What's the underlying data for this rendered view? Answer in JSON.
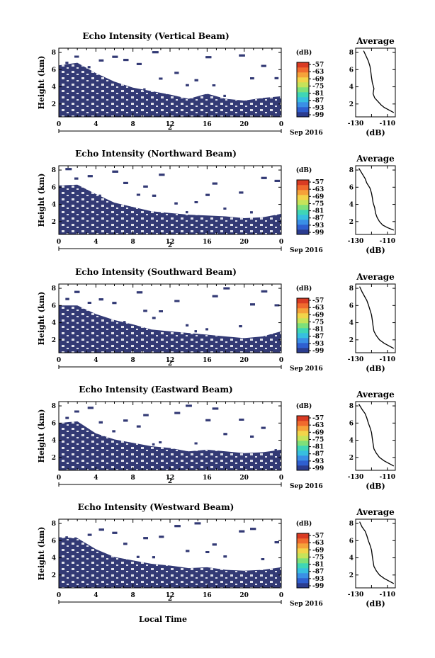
{
  "colors": {
    "echo_fill": "#333a75",
    "colorbar": [
      "#2b3c8f",
      "#2f5fd0",
      "#3a8fe6",
      "#37bfe0",
      "#3fd6b6",
      "#7ee07a",
      "#c6e35a",
      "#f2d44a",
      "#f5a23a",
      "#f06a2e",
      "#d93b23"
    ]
  },
  "shared": {
    "xticks": [
      "0",
      "4",
      "8",
      "12",
      "16",
      "20",
      "0"
    ],
    "date_label": "2",
    "month_year": "Sep 2016",
    "yticks": [
      "2",
      "4",
      "6",
      "8"
    ],
    "cb_unit": "(dB)",
    "cb_ticks": [
      "-57",
      "-63",
      "-69",
      "-75",
      "-81",
      "-87",
      "-93",
      "-99"
    ],
    "avg_title": "Average",
    "avg_xticks": [
      "-130",
      "-110"
    ],
    "avg_xlabel": "(dB)",
    "ylabel": "Height (km)",
    "xlabel": "Local Time"
  },
  "panels": [
    {
      "title": "Echo Intensity (Vertical Beam)"
    },
    {
      "title": "Echo Intensity (Northward Beam)"
    },
    {
      "title": "Echo Intensity (Southward Beam)"
    },
    {
      "title": "Echo Intensity (Eastward Beam)"
    },
    {
      "title": "Echo Intensity (Westward Beam)"
    }
  ],
  "chart_data": [
    {
      "type": "heatmap",
      "title": "Echo Intensity (Vertical Beam)",
      "xlabel": "",
      "ylabel": "Height (km)",
      "xlim": [
        0,
        24
      ],
      "ylim": [
        0.5,
        8.5
      ],
      "colorbar": {
        "label": "(dB)",
        "ticks": [
          -57,
          -63,
          -69,
          -75,
          -81,
          -87,
          -93,
          -99
        ]
      },
      "echo_top_km": {
        "x": [
          0,
          2,
          4,
          6,
          8,
          10,
          12,
          14,
          16,
          18,
          20,
          22,
          24
        ],
        "y": [
          6.5,
          6.8,
          5.6,
          4.6,
          3.9,
          3.5,
          3.1,
          2.6,
          3.2,
          2.6,
          2.4,
          2.7,
          2.9
        ]
      }
    },
    {
      "type": "line",
      "title": "Average",
      "xlabel": "(dB)",
      "ylabel": "",
      "xlim": [
        -130,
        -105
      ],
      "ylim": [
        0.5,
        8.5
      ],
      "x": [
        -106,
        -109,
        -112,
        -114,
        -116,
        -118,
        -119,
        -118.5,
        -119.5,
        -120,
        -120.5,
        -121,
        -122,
        -123.5,
        -125
      ],
      "y": [
        1.0,
        1.3,
        1.6,
        1.9,
        2.3,
        2.7,
        3.2,
        3.8,
        4.5,
        5.1,
        5.8,
        6.4,
        7.0,
        7.6,
        8.2
      ]
    },
    {
      "type": "heatmap",
      "title": "Echo Intensity (Northward Beam)",
      "xlabel": "",
      "ylabel": "Height (km)",
      "xlim": [
        0,
        24
      ],
      "ylim": [
        0.5,
        8.5
      ],
      "colorbar": {
        "label": "(dB)",
        "ticks": [
          -57,
          -63,
          -69,
          -75,
          -81,
          -87,
          -93,
          -99
        ]
      },
      "echo_top_km": {
        "x": [
          0,
          2,
          4,
          6,
          8,
          10,
          12,
          14,
          16,
          18,
          20,
          22,
          24
        ],
        "y": [
          6.2,
          6.3,
          5.2,
          4.2,
          3.7,
          3.2,
          3.0,
          2.8,
          2.7,
          2.6,
          2.4,
          2.5,
          2.9
        ]
      }
    },
    {
      "type": "line",
      "title": "Average",
      "xlabel": "(dB)",
      "ylabel": "",
      "xlim": [
        -130,
        -105
      ],
      "ylim": [
        0.5,
        8.5
      ],
      "x": [
        -106,
        -110,
        -113,
        -115,
        -116.5,
        -117.5,
        -118,
        -119,
        -119.5,
        -120,
        -121,
        -123,
        -124,
        -126,
        -128
      ],
      "y": [
        1.0,
        1.3,
        1.6,
        2.0,
        2.5,
        3.0,
        3.6,
        4.2,
        4.8,
        5.3,
        5.9,
        6.5,
        7.0,
        7.6,
        8.2
      ]
    },
    {
      "type": "heatmap",
      "title": "Echo Intensity (Southward Beam)",
      "xlabel": "",
      "ylabel": "Height (km)",
      "xlim": [
        0,
        24
      ],
      "ylim": [
        0.5,
        8.5
      ],
      "colorbar": {
        "label": "(dB)",
        "ticks": [
          -57,
          -63,
          -69,
          -75,
          -81,
          -87,
          -93,
          -99
        ]
      },
      "echo_top_km": {
        "x": [
          0,
          2,
          4,
          6,
          8,
          10,
          12,
          14,
          16,
          18,
          20,
          22,
          24
        ],
        "y": [
          6.0,
          6.0,
          5.0,
          4.3,
          3.8,
          3.2,
          3.0,
          2.8,
          2.6,
          2.4,
          2.2,
          2.4,
          3.0
        ]
      }
    },
    {
      "type": "line",
      "title": "Average",
      "xlabel": "(dB)",
      "ylabel": "",
      "xlim": [
        -130,
        -105
      ],
      "ylim": [
        0.5,
        8.5
      ],
      "x": [
        -106,
        -109,
        -112,
        -115,
        -117,
        -118.5,
        -119,
        -119.5,
        -120,
        -121,
        -122,
        -123,
        -124.5,
        -126,
        -127.5
      ],
      "y": [
        1.0,
        1.3,
        1.6,
        2.0,
        2.5,
        3.0,
        3.6,
        4.3,
        4.9,
        5.5,
        6.1,
        6.6,
        7.1,
        7.6,
        8.2
      ]
    },
    {
      "type": "heatmap",
      "title": "Echo Intensity (Eastward Beam)",
      "xlabel": "",
      "ylabel": "Height (km)",
      "xlim": [
        0,
        24
      ],
      "ylim": [
        0.5,
        8.5
      ],
      "colorbar": {
        "label": "(dB)",
        "ticks": [
          -57,
          -63,
          -69,
          -75,
          -81,
          -87,
          -93,
          -99
        ]
      },
      "echo_top_km": {
        "x": [
          0,
          2,
          4,
          6,
          8,
          10,
          12,
          14,
          16,
          18,
          20,
          22,
          24
        ],
        "y": [
          6.0,
          6.2,
          4.8,
          4.1,
          3.7,
          3.3,
          3.1,
          2.7,
          2.9,
          2.7,
          2.5,
          2.6,
          2.9
        ]
      }
    },
    {
      "type": "line",
      "title": "Average",
      "xlabel": "(dB)",
      "ylabel": "",
      "xlim": [
        -130,
        -105
      ],
      "ylim": [
        0.5,
        8.5
      ],
      "x": [
        -106,
        -109,
        -112,
        -115,
        -117,
        -118.5,
        -119,
        -119.5,
        -120,
        -121,
        -122,
        -123,
        -124,
        -126,
        -128
      ],
      "y": [
        1.0,
        1.3,
        1.6,
        2.0,
        2.5,
        3.0,
        3.6,
        4.2,
        4.9,
        5.5,
        6.0,
        6.6,
        7.1,
        7.6,
        8.2
      ]
    },
    {
      "type": "heatmap",
      "title": "Echo Intensity (Westward Beam)",
      "xlabel": "Local Time",
      "ylabel": "Height (km)",
      "xlim": [
        0,
        24
      ],
      "ylim": [
        0.5,
        8.5
      ],
      "colorbar": {
        "label": "(dB)",
        "ticks": [
          -57,
          -63,
          -69,
          -75,
          -81,
          -87,
          -93,
          -99
        ]
      },
      "echo_top_km": {
        "x": [
          0,
          2,
          4,
          6,
          8,
          10,
          12,
          14,
          16,
          18,
          20,
          22,
          24
        ],
        "y": [
          6.4,
          6.3,
          5.0,
          4.1,
          3.7,
          3.3,
          3.1,
          2.8,
          2.9,
          2.6,
          2.5,
          2.6,
          2.9
        ]
      }
    },
    {
      "type": "line",
      "title": "Average",
      "xlabel": "(dB)",
      "ylabel": "",
      "xlim": [
        -130,
        -105
      ],
      "ylim": [
        0.5,
        8.5
      ],
      "x": [
        -106,
        -109,
        -112,
        -115,
        -117,
        -118.5,
        -119,
        -119.5,
        -120,
        -121,
        -122,
        -123,
        -124,
        -126,
        -127.5
      ],
      "y": [
        1.0,
        1.3,
        1.6,
        2.0,
        2.5,
        3.0,
        3.6,
        4.2,
        4.9,
        5.5,
        6.0,
        6.6,
        7.1,
        7.6,
        8.2
      ]
    }
  ]
}
